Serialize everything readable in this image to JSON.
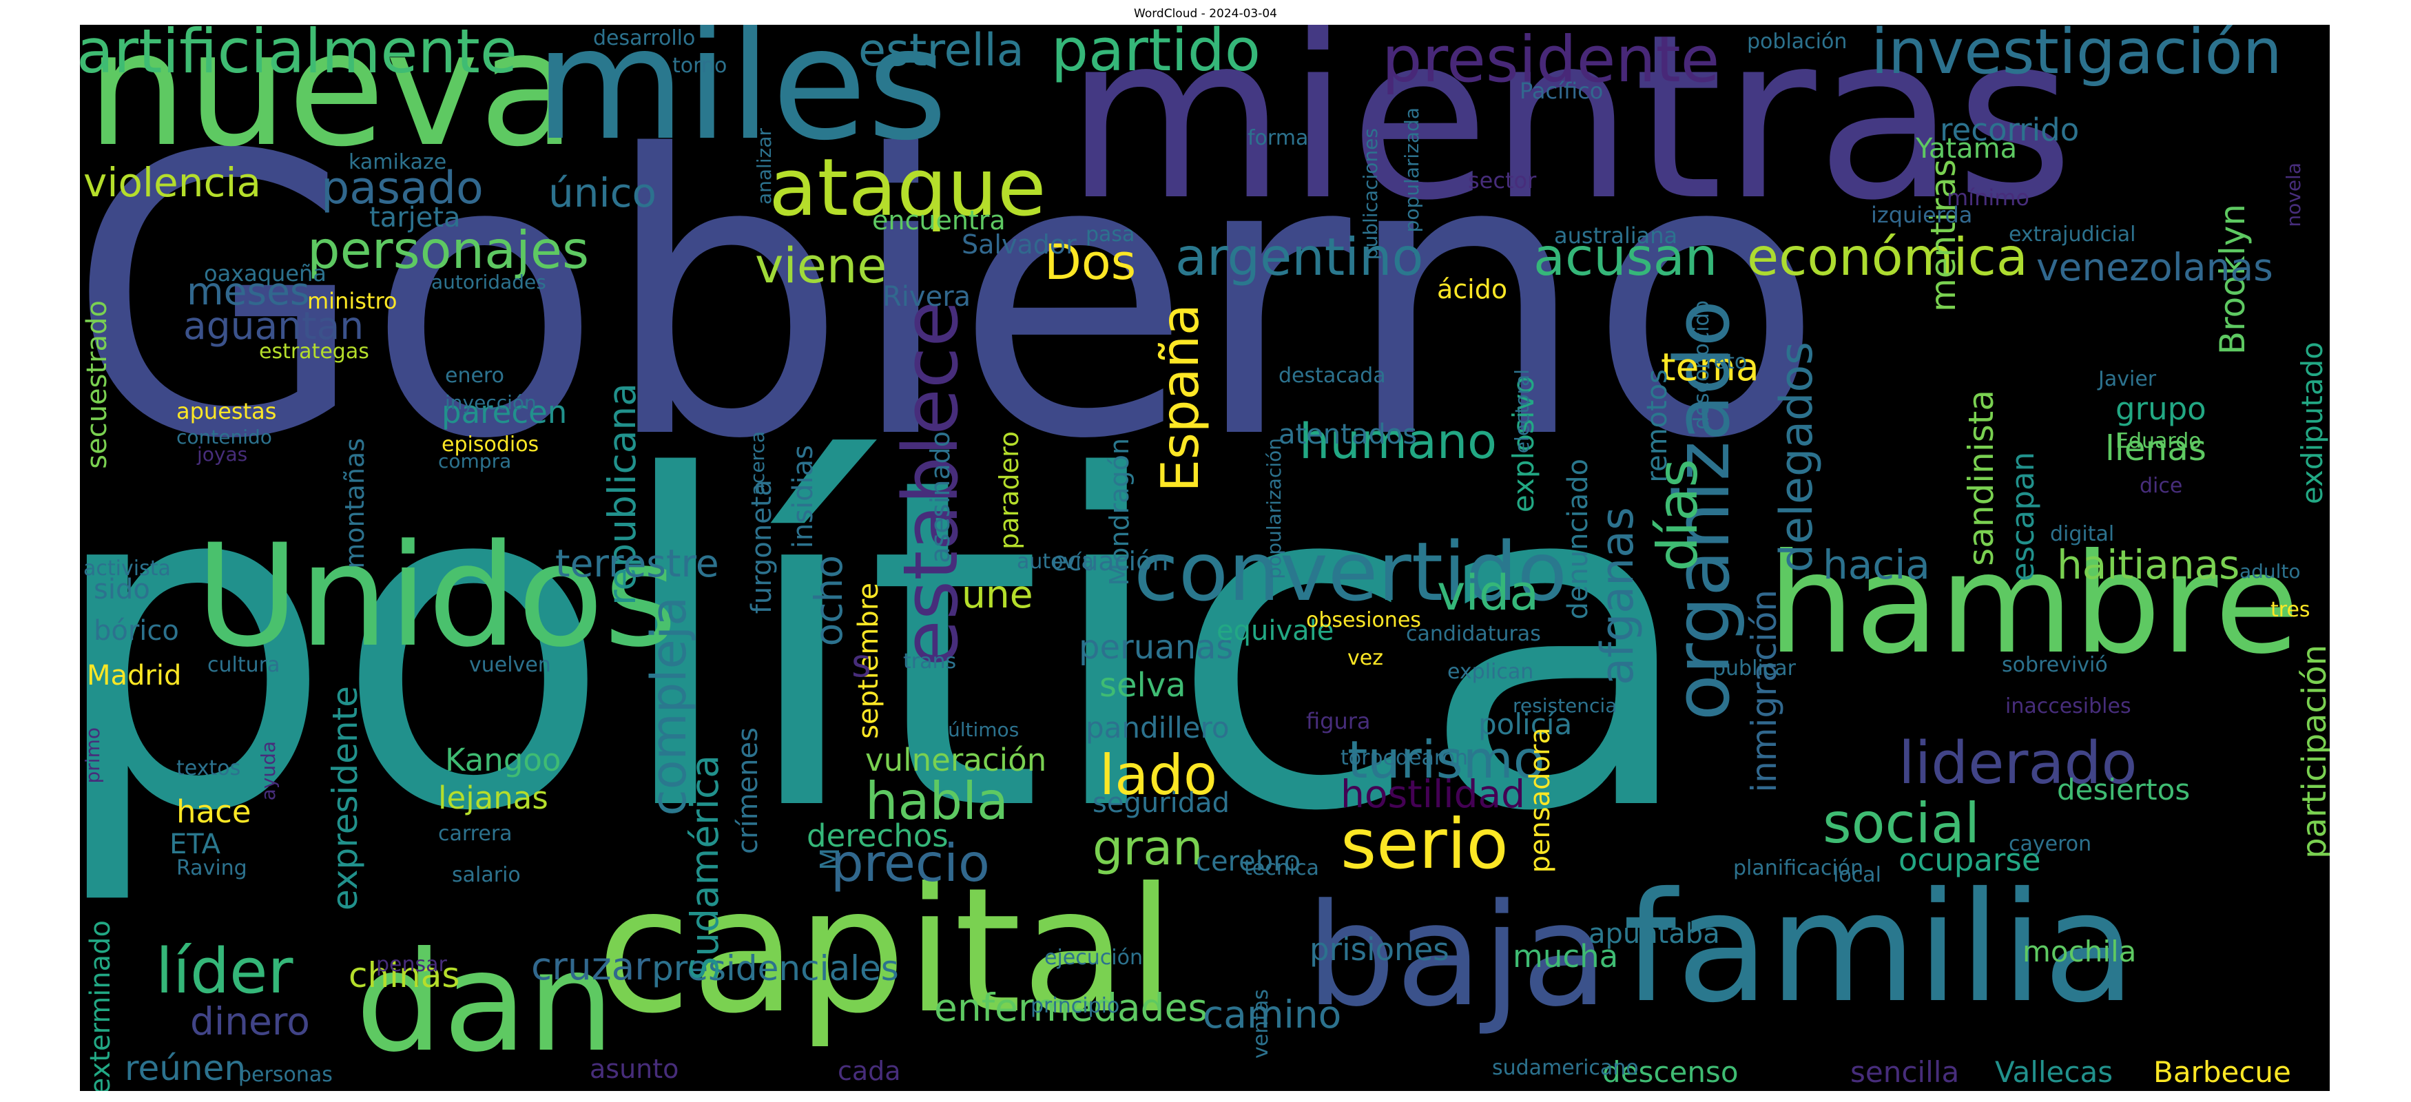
{
  "figure": {
    "title": "WordCloud - 2024-03-04",
    "background": "#000000",
    "colormap": "viridis"
  },
  "words": [
    {
      "text": "Gobierno",
      "color": "#3e4989"
    },
    {
      "text": "política",
      "color": "#21918c"
    },
    {
      "text": "mientras",
      "color": "#443983"
    },
    {
      "text": "nueva",
      "color": "#5ec962"
    },
    {
      "text": "miles",
      "color": "#2a788e"
    },
    {
      "text": "Unidos",
      "color": "#4ac16d"
    },
    {
      "text": "hambre",
      "color": "#5ec962"
    },
    {
      "text": "capital",
      "color": "#7ad151"
    },
    {
      "text": "familia",
      "color": "#2a788e"
    },
    {
      "text": "baja",
      "color": "#3b528b"
    },
    {
      "text": "dan",
      "color": "#5ec962"
    },
    {
      "text": "convertido",
      "color": "#2a788e"
    },
    {
      "text": "ataque",
      "color": "#b5de2b"
    },
    {
      "text": "presidente",
      "color": "#482878"
    },
    {
      "text": "investigación",
      "color": "#2c728e"
    },
    {
      "text": "artificialmente",
      "color": "#3fbc73"
    },
    {
      "text": "partido",
      "color": "#35b779"
    },
    {
      "text": "estrella",
      "color": "#2a788e"
    },
    {
      "text": "establece",
      "color": "#472d7b"
    },
    {
      "text": "organizado",
      "color": "#2c728e"
    },
    {
      "text": "serio",
      "color": "#fde725"
    },
    {
      "text": "liderado",
      "color": "#414487"
    },
    {
      "text": "personajes",
      "color": "#5ec962"
    },
    {
      "text": "pasado",
      "color": "#31688e"
    },
    {
      "text": "único",
      "color": "#2c728e"
    },
    {
      "text": "violencia",
      "color": "#b5de2b"
    },
    {
      "text": "argentino",
      "color": "#2a788e"
    },
    {
      "text": "acusan",
      "color": "#35b779"
    },
    {
      "text": "económica",
      "color": "#addc30"
    },
    {
      "text": "viene",
      "color": "#a0da39"
    },
    {
      "text": "Dos",
      "color": "#fde725"
    },
    {
      "text": "España",
      "color": "#fde725"
    },
    {
      "text": "humano",
      "color": "#22a884"
    },
    {
      "text": "vida",
      "color": "#35b779"
    },
    {
      "text": "turismo",
      "color": "#2a788e"
    },
    {
      "text": "social",
      "color": "#3fbc73"
    },
    {
      "text": "precio",
      "color": "#31688e"
    },
    {
      "text": "habla",
      "color": "#5ec962"
    },
    {
      "text": "lado",
      "color": "#fde725"
    },
    {
      "text": "gran",
      "color": "#7ad151"
    },
    {
      "text": "líder",
      "color": "#35b779"
    },
    {
      "text": "días",
      "color": "#3fbc73"
    },
    {
      "text": "participación",
      "color": "#7ad151"
    },
    {
      "text": "hostilidad",
      "color": "#440154"
    },
    {
      "text": "compleja",
      "color": "#2a788e"
    },
    {
      "text": "republicana",
      "color": "#21918c"
    },
    {
      "text": "afganas",
      "color": "#2c728e"
    },
    {
      "text": "delegados",
      "color": "#2c728e"
    },
    {
      "text": "haitianas",
      "color": "#7ad151"
    },
    {
      "text": "hacia",
      "color": "#2c728e"
    },
    {
      "text": "terrestre",
      "color": "#2c728e"
    },
    {
      "text": "peruanas",
      "color": "#2c728e"
    },
    {
      "text": "selva",
      "color": "#3fbc73"
    },
    {
      "text": "inmigración",
      "color": "#31688e"
    },
    {
      "text": "ocuparse",
      "color": "#22a884"
    },
    {
      "text": "cruzar",
      "color": "#31688e"
    },
    {
      "text": "presidenciales",
      "color": "#2c728e"
    },
    {
      "text": "enfermedades",
      "color": "#5ec962"
    },
    {
      "text": "camino",
      "color": "#2c728e"
    },
    {
      "text": "dinero",
      "color": "#414487"
    },
    {
      "text": "reúnen",
      "color": "#2c728e"
    },
    {
      "text": "chinas",
      "color": "#b5de2b"
    },
    {
      "text": "aguantan",
      "color": "#3b528b"
    },
    {
      "text": "meses",
      "color": "#31688e"
    },
    {
      "text": "parecen",
      "color": "#21918c"
    },
    {
      "text": "tema",
      "color": "#fde725"
    },
    {
      "text": "llenas",
      "color": "#5ec962"
    },
    {
      "text": "grupo",
      "color": "#22a884"
    },
    {
      "text": "sandinista",
      "color": "#7ad151"
    },
    {
      "text": "escapan",
      "color": "#21918c"
    },
    {
      "text": "Brooklyn",
      "color": "#5ec962"
    },
    {
      "text": "mentiras",
      "color": "#7ad151"
    },
    {
      "text": "Yatama",
      "color": "#5ec962"
    },
    {
      "text": "recorrido",
      "color": "#2c728e"
    },
    {
      "text": "venezolanas",
      "color": "#31688e"
    },
    {
      "text": "Kangoo",
      "color": "#3fbc73"
    },
    {
      "text": "lejanas",
      "color": "#b5de2b"
    },
    {
      "text": "hace",
      "color": "#fde725"
    },
    {
      "text": "ETA",
      "color": "#2a788e"
    },
    {
      "text": "expresidente",
      "color": "#21918c"
    },
    {
      "text": "Sudamérica",
      "color": "#21918c"
    },
    {
      "text": "septiembre",
      "color": "#fde725"
    },
    {
      "text": "ocho",
      "color": "#2c728e"
    },
    {
      "text": "une",
      "color": "#b5de2b"
    },
    {
      "text": "vulneración",
      "color": "#7ad151"
    },
    {
      "text": "derechos",
      "color": "#35b779"
    },
    {
      "text": "crímenes",
      "color": "#2c728e"
    },
    {
      "text": "policía",
      "color": "#2a788e"
    },
    {
      "text": "pandillero",
      "color": "#2c728e"
    },
    {
      "text": "seguridad",
      "color": "#2c728e"
    },
    {
      "text": "cerebro",
      "color": "#2c728e"
    },
    {
      "text": "equivale",
      "color": "#22a884"
    },
    {
      "text": "prisiones",
      "color": "#2c728e"
    },
    {
      "text": "mucha",
      "color": "#3fbc73"
    },
    {
      "text": "apuntaba",
      "color": "#2a788e"
    },
    {
      "text": "descenso",
      "color": "#3fbc73"
    },
    {
      "text": "sencilla",
      "color": "#472d7b"
    },
    {
      "text": "Vallecas",
      "color": "#21918c"
    },
    {
      "text": "Barbecue",
      "color": "#fde725"
    },
    {
      "text": "mochila",
      "color": "#5ec962"
    },
    {
      "text": "desiertos",
      "color": "#3fbc73"
    },
    {
      "text": "exdiputado",
      "color": "#22a884"
    },
    {
      "text": "denunciado",
      "color": "#2a788e"
    },
    {
      "text": "explosivo",
      "color": "#22a884"
    },
    {
      "text": "atentados",
      "color": "#2c728e"
    },
    {
      "text": "ácido",
      "color": "#fde725"
    },
    {
      "text": "remotos",
      "color": "#2a788e"
    },
    {
      "text": "montañas",
      "color": "#2c728e"
    },
    {
      "text": "secuestrado",
      "color": "#7ad151"
    },
    {
      "text": "exterminado",
      "color": "#22a884"
    },
    {
      "text": "Madrid",
      "color": "#fde725"
    },
    {
      "text": "bórico",
      "color": "#2c728e"
    },
    {
      "text": "sido",
      "color": "#2c728e"
    },
    {
      "text": "furgoneta",
      "color": "#2c728e"
    },
    {
      "text": "insidias",
      "color": "#2c728e"
    },
    {
      "text": "asesinado",
      "color": "#2c728e"
    },
    {
      "text": "paradero",
      "color": "#b5de2b"
    },
    {
      "text": "Mondragón",
      "color": "#2a788e"
    },
    {
      "text": "Rivera",
      "color": "#31688e"
    },
    {
      "text": "tarjeta",
      "color": "#2c728e"
    },
    {
      "text": "encuentra",
      "color": "#5ec962"
    },
    {
      "text": "Salvador",
      "color": "#31688e"
    },
    {
      "text": "ecuación",
      "color": "#2c728e"
    },
    {
      "text": "s",
      "color": "#472d7b"
    },
    {
      "text": "M",
      "color": "#2c728e"
    },
    {
      "text": "población",
      "color": "#2c728e"
    },
    {
      "text": "desarrollo",
      "color": "#2c728e"
    },
    {
      "text": "torno",
      "color": "#2c728e"
    },
    {
      "text": "analizar",
      "color": "#2c728e"
    },
    {
      "text": "kamikaze",
      "color": "#2c728e"
    },
    {
      "text": "forma",
      "color": "#2c728e"
    },
    {
      "text": "publicaciones",
      "color": "#2c728e"
    },
    {
      "text": "popularizada",
      "color": "#2c728e"
    },
    {
      "text": "Pacífico",
      "color": "#31688e"
    },
    {
      "text": "sector",
      "color": "#472d7b"
    },
    {
      "text": "desconocido",
      "color": "#2c728e"
    },
    {
      "text": "australiana",
      "color": "#2c728e"
    },
    {
      "text": "izquierda",
      "color": "#31688e"
    },
    {
      "text": "extrajudicial",
      "color": "#2c728e"
    },
    {
      "text": "mínimo",
      "color": "#472d7b"
    },
    {
      "text": "novela",
      "color": "#472d7b"
    },
    {
      "text": "pasa",
      "color": "#2c728e"
    },
    {
      "text": "oaxaqueña",
      "color": "#2c728e"
    },
    {
      "text": "autoridades",
      "color": "#2c728e"
    },
    {
      "text": "ministro",
      "color": "#fde725"
    },
    {
      "text": "estrategas",
      "color": "#b5de2b"
    },
    {
      "text": "enero",
      "color": "#2c728e"
    },
    {
      "text": "inyección",
      "color": "#2c728e"
    },
    {
      "text": "apuestas",
      "color": "#fde725"
    },
    {
      "text": "contenido",
      "color": "#2c728e"
    },
    {
      "text": "joyas",
      "color": "#472d7b"
    },
    {
      "text": "episodios",
      "color": "#fde725"
    },
    {
      "text": "compra",
      "color": "#2c728e"
    },
    {
      "text": "popularización",
      "color": "#2c728e"
    },
    {
      "text": "destacada",
      "color": "#2c728e"
    },
    {
      "text": "electoral",
      "color": "#2c728e"
    },
    {
      "text": "reto",
      "color": "#2c728e"
    },
    {
      "text": "Javier",
      "color": "#2c728e"
    },
    {
      "text": "Eduardo",
      "color": "#5ec962"
    },
    {
      "text": "dice",
      "color": "#472d7b"
    },
    {
      "text": "digital",
      "color": "#2c728e"
    },
    {
      "text": "adulto",
      "color": "#2c728e"
    },
    {
      "text": "tres",
      "color": "#fde725"
    },
    {
      "text": "autovía",
      "color": "#2c728e"
    },
    {
      "text": "obsesiones",
      "color": "#fde725"
    },
    {
      "text": "candidaturas",
      "color": "#2c728e"
    },
    {
      "text": "vez",
      "color": "#fde725"
    },
    {
      "text": "explican",
      "color": "#2c728e"
    },
    {
      "text": "resistencia",
      "color": "#2c728e"
    },
    {
      "text": "publicar",
      "color": "#2c728e"
    },
    {
      "text": "sobrevivió",
      "color": "#2c728e"
    },
    {
      "text": "inaccesibles",
      "color": "#472d7b"
    },
    {
      "text": "figura",
      "color": "#472d7b"
    },
    {
      "text": "pensadora",
      "color": "#fde725"
    },
    {
      "text": "torpedearon",
      "color": "#2c728e"
    },
    {
      "text": "técnica",
      "color": "#2c728e"
    },
    {
      "text": "planificación",
      "color": "#2c728e"
    },
    {
      "text": "local",
      "color": "#2c728e"
    },
    {
      "text": "cayeron",
      "color": "#2c728e"
    },
    {
      "text": "ventas",
      "color": "#2c728e"
    },
    {
      "text": "ejecución",
      "color": "#2c728e"
    },
    {
      "text": "principio",
      "color": "#2c728e"
    },
    {
      "text": "cada",
      "color": "#472d7b"
    },
    {
      "text": "asunto",
      "color": "#472d7b"
    },
    {
      "text": "personas",
      "color": "#2c728e"
    },
    {
      "text": "pensar",
      "color": "#472d7b"
    },
    {
      "text": "carrera",
      "color": "#2c728e"
    },
    {
      "text": "salario",
      "color": "#2c728e"
    },
    {
      "text": "Raving",
      "color": "#2c728e"
    },
    {
      "text": "textos",
      "color": "#2c728e"
    },
    {
      "text": "ayuda",
      "color": "#472d7b"
    },
    {
      "text": "primo",
      "color": "#472d7b"
    },
    {
      "text": "cultura",
      "color": "#2c728e"
    },
    {
      "text": "activista",
      "color": "#2c728e"
    },
    {
      "text": "vuelven",
      "color": "#2c728e"
    },
    {
      "text": "últimos",
      "color": "#2c728e"
    },
    {
      "text": "trans",
      "color": "#2c728e"
    },
    {
      "text": "sudamericano",
      "color": "#2c728e"
    },
    {
      "text": "acerca",
      "color": "#2c728e"
    },
    {
      "text": "genere",
      "color": "#2c728e"
    }
  ]
}
